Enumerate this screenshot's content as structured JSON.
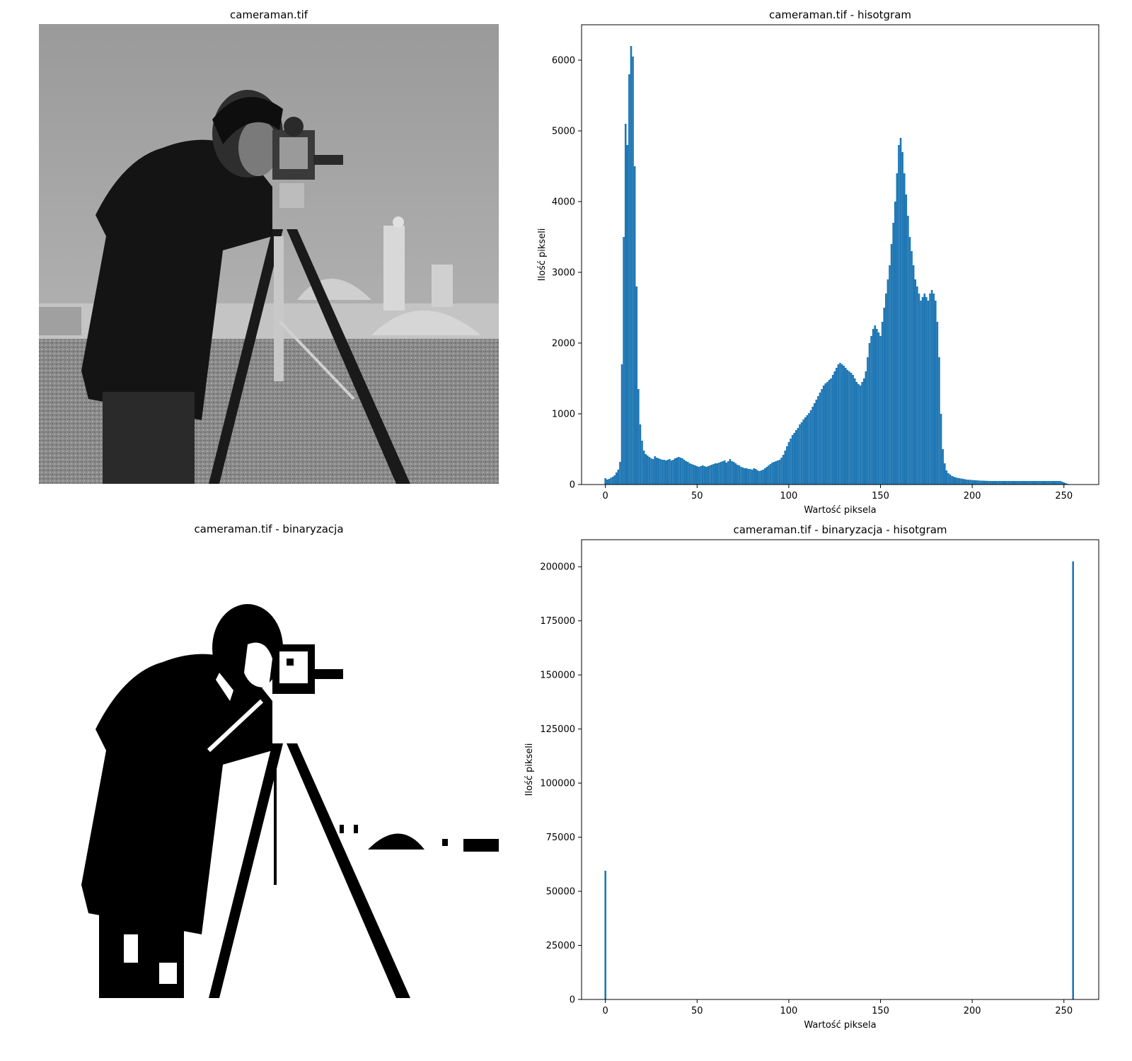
{
  "panels": {
    "photo_original_title": "cameraman.tif",
    "photo_binary_title": "cameraman.tif - binaryzacja"
  },
  "chart_data": [
    {
      "type": "bar",
      "title": "cameraman.tif - hisotgram",
      "xlabel": "Wartość piksela",
      "ylabel": "Ilość pikseli",
      "xlim": [
        -13,
        269
      ],
      "ylim": [
        0,
        6500
      ],
      "xticks": [
        0,
        50,
        100,
        150,
        200,
        250
      ],
      "yticks": [
        0,
        1000,
        2000,
        3000,
        4000,
        5000,
        6000
      ],
      "color": "#1f77b4",
      "bin_width": 1,
      "x_start": 0,
      "values": [
        90,
        70,
        80,
        95,
        110,
        130,
        170,
        210,
        320,
        1700,
        3500,
        5100,
        4800,
        5800,
        6200,
        6050,
        4500,
        2800,
        1350,
        850,
        620,
        480,
        430,
        410,
        390,
        370,
        360,
        400,
        380,
        370,
        360,
        350,
        350,
        340,
        350,
        360,
        340,
        350,
        370,
        380,
        390,
        380,
        370,
        350,
        330,
        320,
        300,
        290,
        280,
        270,
        260,
        250,
        260,
        270,
        260,
        250,
        260,
        270,
        280,
        290,
        300,
        300,
        310,
        320,
        330,
        340,
        310,
        330,
        360,
        330,
        320,
        300,
        280,
        270,
        250,
        240,
        230,
        230,
        220,
        220,
        210,
        230,
        220,
        200,
        190,
        200,
        210,
        230,
        250,
        270,
        290,
        310,
        320,
        330,
        340,
        350,
        380,
        420,
        480,
        540,
        600,
        650,
        700,
        730,
        770,
        800,
        850,
        880,
        920,
        950,
        980,
        1010,
        1050,
        1100,
        1150,
        1200,
        1250,
        1300,
        1350,
        1400,
        1430,
        1450,
        1480,
        1500,
        1550,
        1600,
        1650,
        1700,
        1720,
        1700,
        1680,
        1650,
        1620,
        1600,
        1580,
        1550,
        1500,
        1450,
        1420,
        1400,
        1450,
        1500,
        1600,
        1800,
        2000,
        2100,
        2200,
        2250,
        2200,
        2150,
        2100,
        2300,
        2500,
        2700,
        2900,
        3100,
        3400,
        3700,
        4000,
        4400,
        4800,
        4900,
        4700,
        4400,
        4100,
        3800,
        3500,
        3300,
        3100,
        2900,
        2800,
        2700,
        2600,
        2650,
        2700,
        2650,
        2600,
        2700,
        2750,
        2700,
        2600,
        2300,
        1800,
        1000,
        500,
        300,
        200,
        160,
        140,
        120,
        110,
        100,
        95,
        90,
        85,
        80,
        75,
        70,
        68,
        66,
        64,
        62,
        60,
        58,
        56,
        55,
        54,
        53,
        52,
        51,
        50,
        50,
        50,
        50,
        50,
        50,
        50,
        50,
        50,
        50,
        50,
        50,
        50,
        50,
        50,
        50,
        50,
        50,
        50,
        50,
        50,
        50,
        50,
        50,
        50,
        50,
        50,
        50,
        50,
        50,
        50,
        50,
        50,
        50,
        50,
        50,
        50,
        50,
        50,
        40,
        30,
        20,
        10,
        5
      ]
    },
    {
      "type": "bar",
      "title": "cameraman.tif - binaryzacja - hisotgram",
      "xlabel": "Wartość piksela",
      "ylabel": "Ilość pikseli",
      "xlim": [
        -13,
        269
      ],
      "ylim": [
        0,
        212500
      ],
      "xticks": [
        0,
        50,
        100,
        150,
        200,
        250
      ],
      "yticks": [
        0,
        25000,
        50000,
        75000,
        100000,
        125000,
        150000,
        175000,
        200000
      ],
      "color": "#1f77b4",
      "bin_width": 1,
      "x": [
        0,
        255
      ],
      "values": [
        59500,
        202500
      ]
    }
  ]
}
